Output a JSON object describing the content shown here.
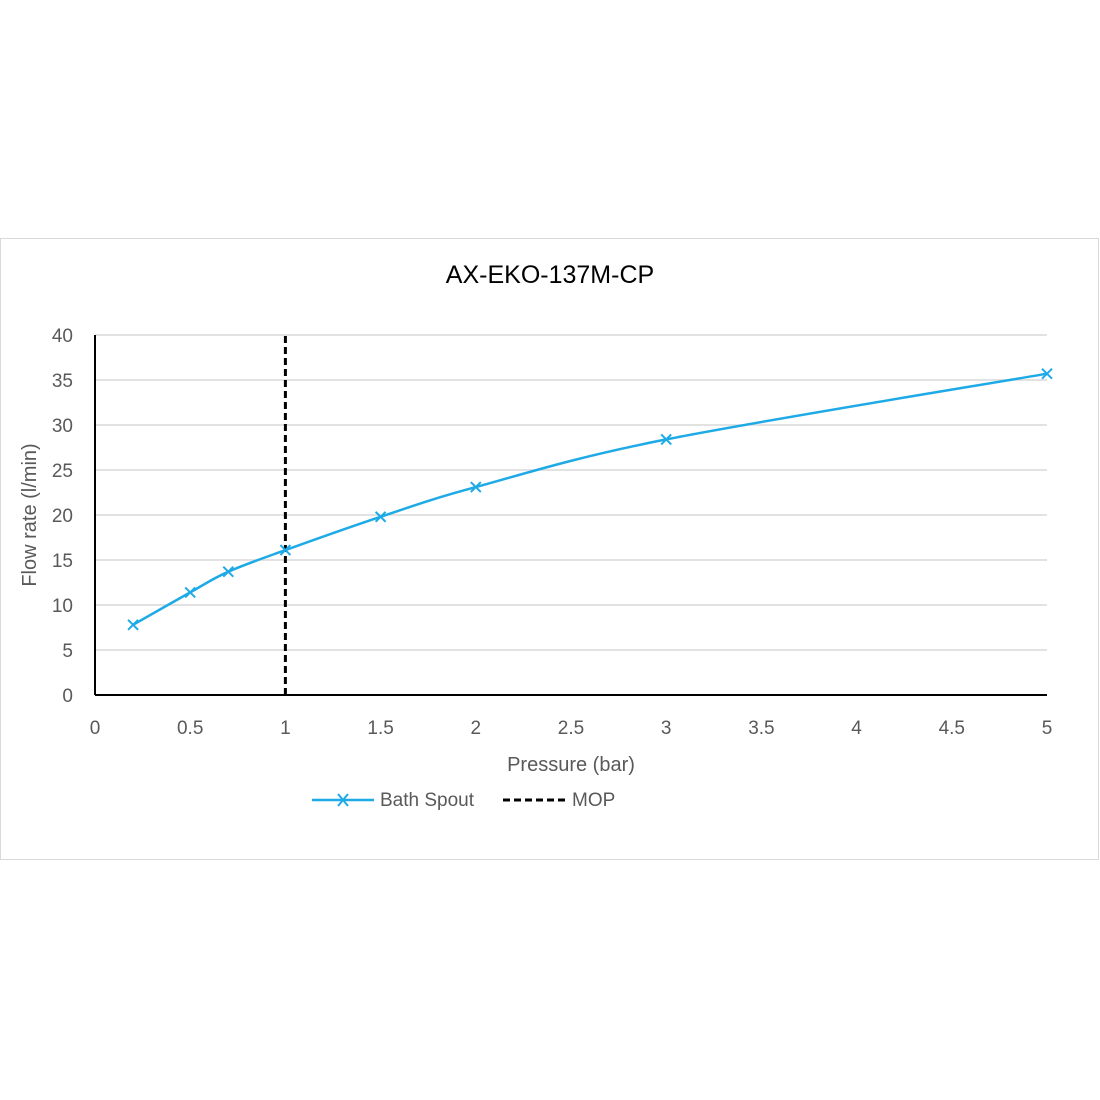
{
  "chart_data": {
    "type": "line",
    "title": "AX-EKO-137M-CP",
    "xlabel": "Pressure (bar)",
    "ylabel": "Flow rate (l/min)",
    "xlim": [
      0,
      5
    ],
    "ylim": [
      0,
      40
    ],
    "xticks": [
      "0",
      "0.5",
      "1",
      "1.5",
      "2",
      "2.5",
      "3",
      "3.5",
      "4",
      "4.5",
      "5"
    ],
    "yticks": [
      "0",
      "5",
      "10",
      "15",
      "20",
      "25",
      "30",
      "35",
      "40"
    ],
    "grid": "horizontal",
    "legend_position": "bottom",
    "series": [
      {
        "name": "Bath Spout",
        "color": "#1eaae6",
        "marker": "x",
        "smooth": true,
        "x": [
          0.2,
          0.5,
          0.7,
          1,
          1.5,
          2,
          3,
          5
        ],
        "y": [
          7.8,
          11.4,
          13.7,
          16.1,
          19.8,
          23.1,
          28.4,
          35.7
        ]
      },
      {
        "name": "MOP",
        "color": "#000000",
        "style": "dashed",
        "x": [
          1,
          1
        ],
        "y": [
          0,
          40
        ]
      }
    ]
  }
}
